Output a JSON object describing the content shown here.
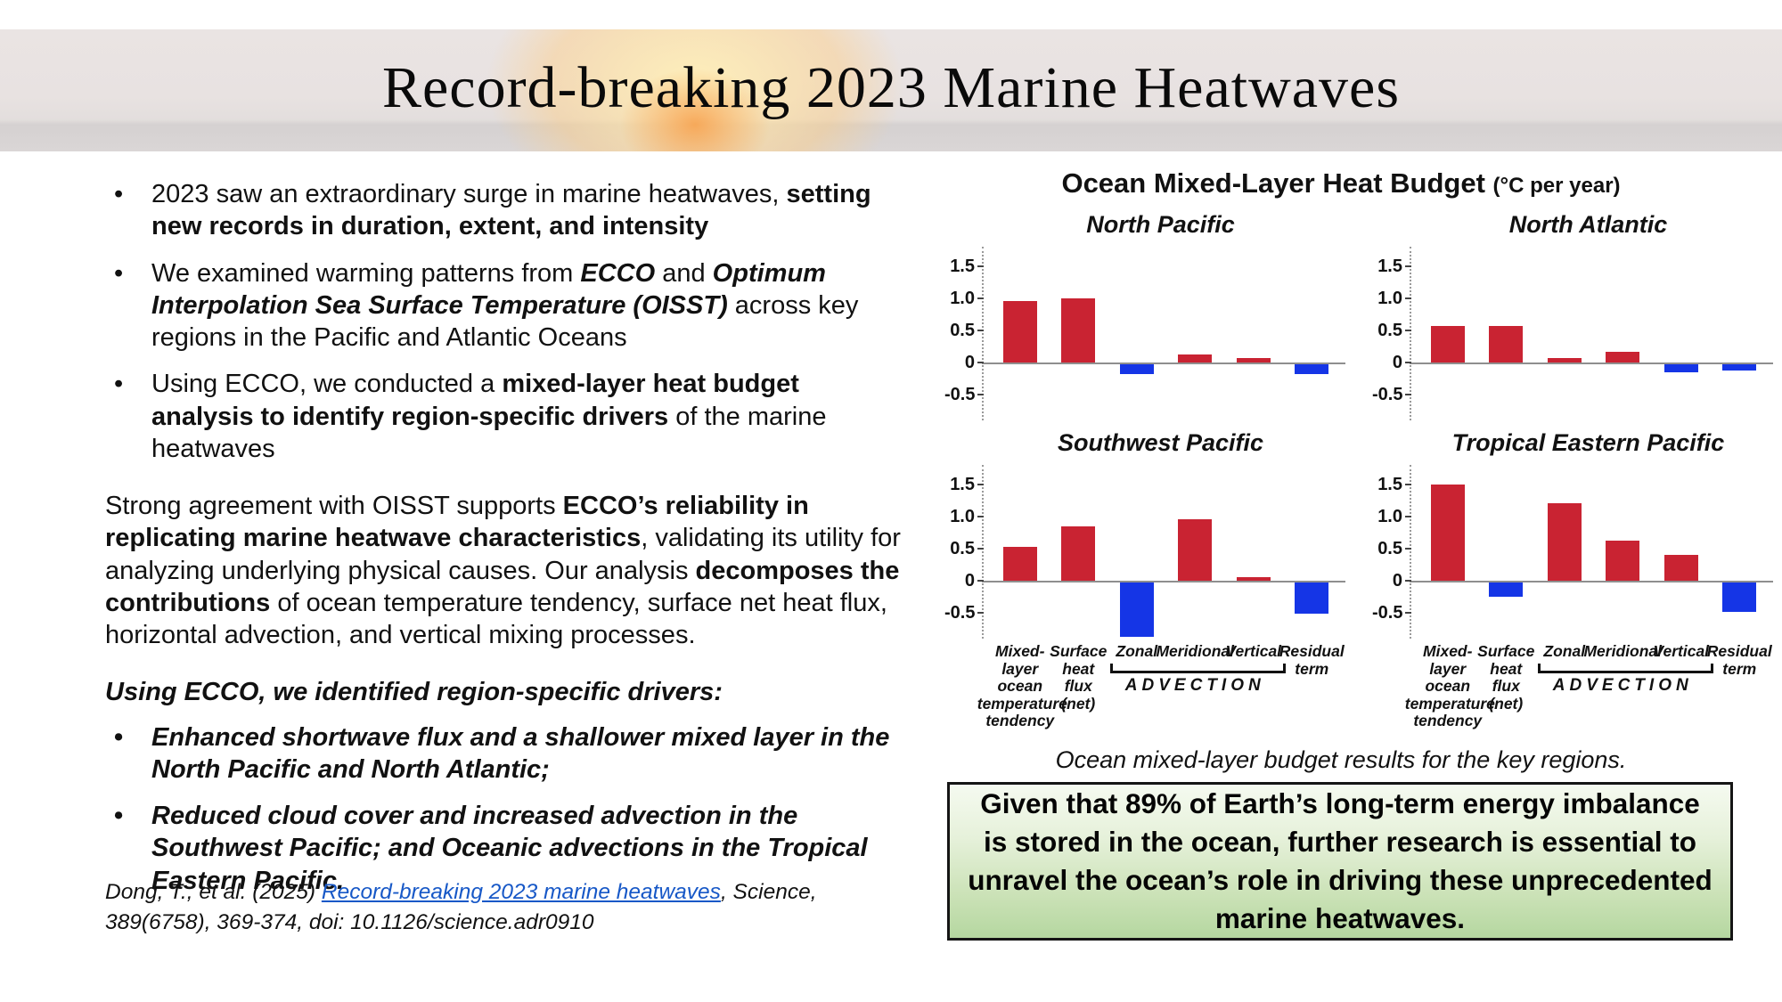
{
  "title": "Record-breaking 2023 Marine Heatwaves",
  "left": {
    "bullets": [
      [
        {
          "style": "normal",
          "text": "2023 saw an extraordinary surge in marine heatwaves, "
        },
        {
          "style": "bold",
          "text": "setting new records in duration, extent, and intensity"
        }
      ],
      [
        {
          "style": "normal",
          "text": "We examined warming patterns from "
        },
        {
          "style": "bolditalic",
          "text": "ECCO"
        },
        {
          "style": "normal",
          "text": " and "
        },
        {
          "style": "bolditalic",
          "text": "Optimum Interpolation Sea Surface Temperature (OISST)"
        },
        {
          "style": "normal",
          "text": " across key regions in the Pacific and Atlantic Oceans"
        }
      ],
      [
        {
          "style": "normal",
          "text": "Using ECCO, we conducted a "
        },
        {
          "style": "bold",
          "text": "mixed-layer heat budget analysis to identify region-specific drivers"
        },
        {
          "style": "normal",
          "text": " of the marine heatwaves"
        }
      ]
    ],
    "paragraph": [
      {
        "style": "normal",
        "text": "Strong agreement with OISST supports "
      },
      {
        "style": "bold",
        "text": "ECCO’s reliability in replicating marine heatwave characteristics"
      },
      {
        "style": "normal",
        "text": ", validating its utility for analyzing underlying physical causes. Our analysis "
      },
      {
        "style": "bold",
        "text": "decomposes the contributions"
      },
      {
        "style": "normal",
        "text": " of ocean temperature tendency, surface net heat flux, horizontal advection, and vertical mixing processes."
      }
    ],
    "drivers_heading": "Using ECCO, we identified region-specific drivers:",
    "driver_bullets": [
      "Enhanced shortwave flux and a shallower mixed layer in the North Pacific and North Atlantic;",
      "Reduced cloud cover and increased advection in the Southwest Pacific; and Oceanic advections in the Tropical Eastern Pacific."
    ],
    "citation": [
      {
        "style": "italic",
        "text": "Dong, T., et al. (2025) "
      },
      {
        "style": "link",
        "text": "Record-breaking 2023 marine heatwaves"
      },
      {
        "style": "italic",
        "text": ", Science, 389(6758), 369-374, doi: 10.1126/science.adr0910"
      }
    ]
  },
  "chart_data": {
    "type": "bar",
    "title": "Ocean Mixed-Layer Heat Budget",
    "unit_label": "(°C per year)",
    "categories": [
      "Mixed-layer\nocean\ntemperature\ntendency",
      "Surface\nheat\nflux\n(net)",
      "Zonal",
      "Meridional",
      "Vertical",
      "Residual\nterm"
    ],
    "advection_label": "ADVECTION",
    "advection_span": [
      2,
      4
    ],
    "yticks": [
      1.5,
      1.0,
      0.5,
      0,
      -0.5
    ],
    "ytick_labels": [
      "1.5",
      "1.0",
      "0.5",
      "0",
      "-0.5"
    ],
    "ylim": [
      -0.9,
      1.8
    ],
    "grid": false,
    "bar_colors": {
      "positive": "#c92332",
      "negative": "#1535e6"
    },
    "charts": [
      {
        "region": "North Pacific",
        "values": [
          0.95,
          1.0,
          -0.15,
          0.13,
          0.07,
          -0.15
        ]
      },
      {
        "region": "North Atlantic",
        "values": [
          0.57,
          0.57,
          0.07,
          0.17,
          -0.12,
          -0.1
        ]
      },
      {
        "region": "Southwest Pacific",
        "values": [
          0.53,
          0.85,
          -0.85,
          0.95,
          0.05,
          -0.48
        ]
      },
      {
        "region": "Tropical Eastern Pacific",
        "values": [
          1.5,
          -0.22,
          1.2,
          0.62,
          0.4,
          -0.45
        ]
      }
    ],
    "caption": "Ocean mixed-layer budget results for the key regions."
  },
  "green_box": {
    "text": "Given that 89% of Earth’s long-term energy imbalance is stored in the ocean, further research is essential to unravel the ocean’s role in driving these unprecedented marine heatwaves."
  }
}
